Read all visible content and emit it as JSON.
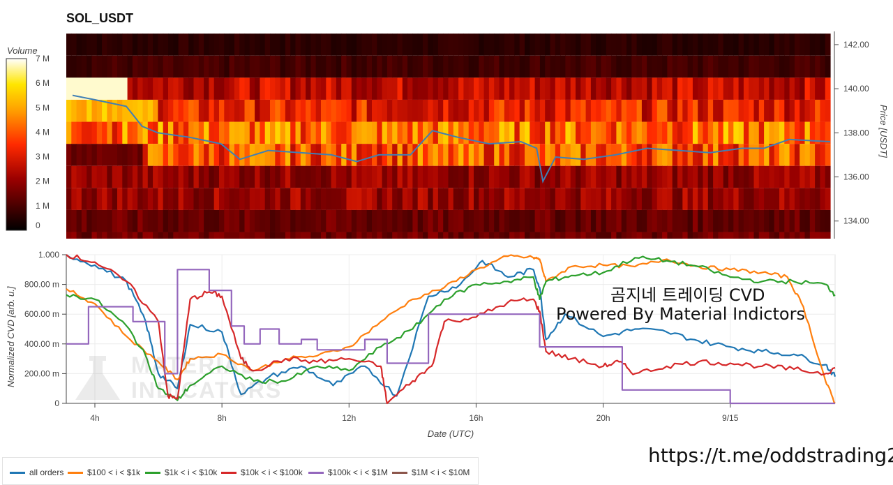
{
  "chart_title": "SOL_USDT",
  "colors": {
    "all_orders": "#1f77b4",
    "r100_1k": "#ff7f0e",
    "r1k_10k": "#2ca02c",
    "r10k_100k": "#d62728",
    "r100k_1m": "#9467bd",
    "r1m_10m": "#8c564b"
  },
  "overlay": {
    "line1": "곰지네 트레이딩 CVD",
    "line2": "Powered By Material Indictors",
    "url": "https://t.me/oddstrading2"
  },
  "watermark": {
    "line1": "MATERIAL",
    "line2": "INDICATORS"
  },
  "chart_data": [
    {
      "type": "heatmap",
      "title": "SOL_USDT",
      "colorbar_label": "Volume",
      "colorbar_ticks": [
        "7 M",
        "6 M",
        "5 M",
        "4 M",
        "3 M",
        "2 M",
        "1 M",
        "0"
      ],
      "colorbar_range": [
        0,
        7000000
      ],
      "ylabel": "Price [USDT]",
      "y_ticks": [
        "142.00",
        "140.00",
        "138.00",
        "136.00",
        "134.00"
      ],
      "ylim": [
        133.2,
        142.6
      ],
      "price_bins": [
        142.0,
        141.0,
        140.0,
        139.0,
        138.0,
        137.0,
        136.0,
        135.0,
        134.0,
        133.0
      ],
      "volume_by_bin_millions_typical": [
        0.6,
        0.9,
        2.6,
        3.2,
        4.3,
        3.9,
        2.0,
        2.1,
        1.4,
        1.5
      ],
      "price_line": {
        "name": "price",
        "x_hours": [
          3.3,
          4.0,
          5.0,
          5.5,
          6.0,
          7.0,
          8.0,
          8.6,
          9.5,
          10.5,
          11.5,
          12.3,
          13.0,
          14.0,
          14.7,
          15.5,
          16.5,
          17.5,
          18.0,
          18.2,
          18.6,
          19.5,
          20.5,
          21.5,
          22.5,
          23.5,
          24.5,
          25.2,
          26.0,
          27.3
        ],
        "price": [
          139.7,
          139.5,
          139.2,
          138.3,
          138.0,
          137.8,
          137.5,
          136.8,
          137.2,
          137.1,
          137.0,
          136.7,
          137.0,
          137.0,
          138.1,
          137.8,
          137.5,
          137.6,
          137.3,
          135.8,
          136.9,
          136.8,
          137.0,
          137.3,
          137.2,
          137.1,
          137.3,
          137.3,
          137.7,
          137.6
        ]
      }
    },
    {
      "type": "line",
      "ylabel": "Normalized CVD [arb. u.]",
      "xlabel": "Date (UTC)",
      "y_ticks": [
        "1.000",
        "800.00 m",
        "600.00 m",
        "400.00 m",
        "200.00 m",
        "0"
      ],
      "ylim": [
        0,
        1.0
      ],
      "x_ticks": [
        "4h",
        "8h",
        "12h",
        "16h",
        "20h",
        "9/15"
      ],
      "x_tick_hours": [
        4,
        8,
        12,
        16,
        20,
        24
      ],
      "xlim": [
        3.1,
        27.3
      ],
      "series": [
        {
          "name": "all orders",
          "x": [
            3.1,
            4.0,
            5.0,
            5.6,
            6.0,
            6.6,
            7.0,
            8.0,
            8.6,
            9.5,
            10.5,
            11.5,
            12.5,
            13.5,
            14.5,
            15.5,
            16.2,
            17.0,
            17.8,
            18.0,
            18.2,
            18.8,
            20.0,
            21.0,
            22.0,
            23.0,
            24.0,
            25.0,
            26.0,
            27.0,
            27.3
          ],
          "y": [
            1.0,
            0.93,
            0.82,
            0.55,
            0.2,
            0.1,
            0.53,
            0.48,
            0.06,
            0.18,
            0.25,
            0.12,
            0.25,
            0.05,
            0.72,
            0.8,
            0.96,
            0.85,
            0.9,
            0.78,
            0.43,
            0.6,
            0.45,
            0.5,
            0.48,
            0.42,
            0.38,
            0.35,
            0.33,
            0.26,
            0.18
          ]
        },
        {
          "name": "$100 < i < $1k",
          "x": [
            3.1,
            4.0,
            5.0,
            6.0,
            6.6,
            7.0,
            8.0,
            9.0,
            10.0,
            11.0,
            12.0,
            13.0,
            14.0,
            15.0,
            16.0,
            17.0,
            17.8,
            18.0,
            18.2,
            19.0,
            20.0,
            21.0,
            22.0,
            23.0,
            24.0,
            25.0,
            25.8,
            26.3,
            27.0,
            27.3
          ],
          "y": [
            0.77,
            0.67,
            0.45,
            0.28,
            0.16,
            0.3,
            0.33,
            0.22,
            0.3,
            0.32,
            0.38,
            0.55,
            0.7,
            0.78,
            0.9,
            0.99,
            0.98,
            0.97,
            0.82,
            0.92,
            0.93,
            0.92,
            0.97,
            0.92,
            0.9,
            0.88,
            0.85,
            0.65,
            0.15,
            0.0
          ]
        },
        {
          "name": "$1k < i < $10k",
          "x": [
            3.1,
            4.0,
            5.0,
            5.6,
            6.0,
            6.6,
            7.0,
            8.0,
            9.0,
            10.0,
            11.0,
            12.0,
            13.0,
            14.0,
            15.0,
            16.0,
            17.0,
            17.8,
            18.0,
            18.2,
            19.0,
            20.0,
            21.0,
            22.0,
            23.0,
            24.0,
            25.0,
            26.0,
            27.0,
            27.3
          ],
          "y": [
            0.73,
            0.7,
            0.52,
            0.32,
            0.1,
            0.02,
            0.12,
            0.25,
            0.15,
            0.15,
            0.25,
            0.22,
            0.38,
            0.5,
            0.7,
            0.8,
            0.82,
            0.85,
            0.7,
            0.82,
            0.86,
            0.88,
            0.98,
            0.96,
            0.92,
            0.85,
            0.82,
            0.82,
            0.8,
            0.73
          ]
        },
        {
          "name": "$10k < i < $100k",
          "x": [
            3.1,
            4.0,
            5.0,
            6.0,
            6.3,
            6.6,
            7.0,
            7.6,
            8.0,
            8.6,
            9.0,
            10.0,
            11.0,
            12.0,
            13.0,
            13.2,
            14.0,
            14.6,
            15.0,
            16.0,
            17.0,
            17.8,
            18.0,
            18.2,
            19.0,
            20.0,
            20.5,
            21.0,
            22.0,
            23.0,
            24.0,
            25.0,
            26.0,
            27.0,
            27.3
          ],
          "y": [
            1.0,
            0.95,
            0.82,
            0.55,
            0.05,
            0.03,
            0.7,
            0.75,
            0.72,
            0.3,
            0.22,
            0.3,
            0.28,
            0.3,
            0.25,
            0.0,
            0.15,
            0.25,
            0.55,
            0.58,
            0.68,
            0.7,
            0.62,
            0.35,
            0.3,
            0.25,
            0.28,
            0.2,
            0.25,
            0.28,
            0.27,
            0.25,
            0.23,
            0.2,
            0.24
          ]
        },
        {
          "name": "$100k < i < $1M",
          "x": [
            3.1,
            3.8,
            3.8,
            5.2,
            5.2,
            6.2,
            6.2,
            6.6,
            6.6,
            7.6,
            7.6,
            8.3,
            8.3,
            8.7,
            8.7,
            9.2,
            9.2,
            9.8,
            9.8,
            10.5,
            10.5,
            11.0,
            11.0,
            12.5,
            12.5,
            13.2,
            13.2,
            14.5,
            14.5,
            18.0,
            18.0,
            20.6,
            20.6,
            24.0,
            24.0,
            27.3
          ],
          "y": [
            0.4,
            0.4,
            0.65,
            0.65,
            0.55,
            0.55,
            0.2,
            0.2,
            0.9,
            0.9,
            0.76,
            0.76,
            0.52,
            0.52,
            0.4,
            0.4,
            0.5,
            0.5,
            0.4,
            0.4,
            0.43,
            0.43,
            0.36,
            0.36,
            0.43,
            0.43,
            0.27,
            0.27,
            0.6,
            0.6,
            0.38,
            0.38,
            0.09,
            0.09,
            0.0,
            0.0
          ]
        },
        {
          "name": "$1M < i < $10M",
          "x": [],
          "y": []
        }
      ]
    }
  ]
}
